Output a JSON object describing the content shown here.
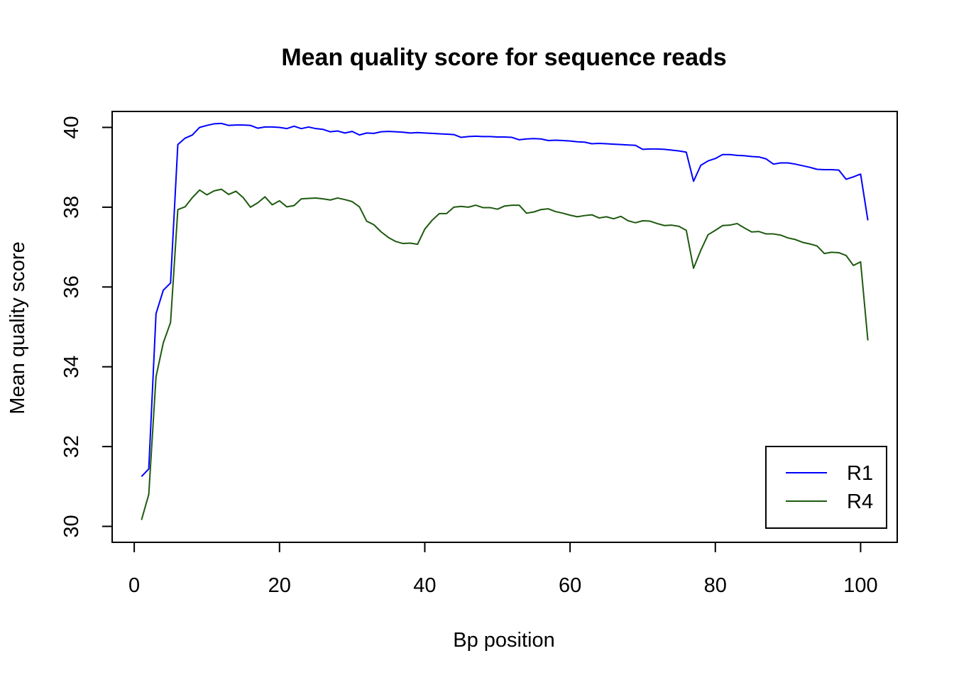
{
  "chart_data": {
    "type": "line",
    "title": "Mean quality score for sequence reads",
    "xlabel": "Bp position",
    "ylabel": "Mean quality score",
    "xlim": [
      -3.04,
      105.04
    ],
    "ylim": [
      29.6,
      40.4
    ],
    "xticks": [
      0,
      20,
      40,
      60,
      80,
      100
    ],
    "yticks": [
      30,
      32,
      34,
      36,
      38,
      40
    ],
    "grid": false,
    "legend_position": "bottom-right",
    "x": [
      1,
      2,
      3,
      4,
      5,
      6,
      7,
      8,
      9,
      10,
      11,
      12,
      13,
      14,
      15,
      16,
      17,
      18,
      19,
      20,
      21,
      22,
      23,
      24,
      25,
      26,
      27,
      28,
      29,
      30,
      31,
      32,
      33,
      34,
      35,
      36,
      37,
      38,
      39,
      40,
      41,
      42,
      43,
      44,
      45,
      46,
      47,
      48,
      49,
      50,
      51,
      52,
      53,
      54,
      55,
      56,
      57,
      58,
      59,
      60,
      61,
      62,
      63,
      64,
      65,
      66,
      67,
      68,
      69,
      70,
      71,
      72,
      73,
      74,
      75,
      76,
      77,
      78,
      79,
      80,
      81,
      82,
      83,
      84,
      85,
      86,
      87,
      88,
      89,
      90,
      91,
      92,
      93,
      94,
      95,
      96,
      97,
      98,
      99,
      100,
      101
    ],
    "series": [
      {
        "name": "R1",
        "color": "#0000ff",
        "values": [
          31.25,
          31.44,
          35.33,
          35.92,
          36.1,
          39.57,
          39.73,
          39.81,
          40.0,
          40.05,
          40.09,
          40.1,
          40.05,
          40.06,
          40.06,
          40.05,
          39.98,
          40.01,
          40.01,
          40.0,
          39.97,
          40.03,
          39.97,
          40.01,
          39.97,
          39.95,
          39.89,
          39.91,
          39.86,
          39.9,
          39.81,
          39.86,
          39.85,
          39.89,
          39.9,
          39.89,
          39.88,
          39.86,
          39.87,
          39.86,
          39.85,
          39.84,
          39.83,
          39.82,
          39.75,
          39.77,
          39.78,
          39.77,
          39.77,
          39.76,
          39.76,
          39.75,
          39.69,
          39.71,
          39.72,
          39.71,
          39.67,
          39.68,
          39.67,
          39.66,
          39.64,
          39.63,
          39.59,
          39.6,
          39.59,
          39.58,
          39.57,
          39.56,
          39.55,
          39.45,
          39.46,
          39.46,
          39.45,
          39.43,
          39.41,
          39.38,
          38.65,
          39.05,
          39.16,
          39.22,
          39.32,
          39.32,
          39.3,
          39.29,
          39.27,
          39.26,
          39.21,
          39.08,
          39.11,
          39.11,
          39.08,
          39.04,
          39.0,
          38.95,
          38.94,
          38.94,
          38.93,
          38.7,
          38.76,
          38.83,
          37.67
        ]
      },
      {
        "name": "R4",
        "color": "#1e5a10",
        "values": [
          30.16,
          30.8,
          33.75,
          34.6,
          35.11,
          37.94,
          38.01,
          38.24,
          38.43,
          38.31,
          38.41,
          38.45,
          38.32,
          38.4,
          38.24,
          38.0,
          38.11,
          38.26,
          38.06,
          38.16,
          38.01,
          38.04,
          38.21,
          38.22,
          38.23,
          38.21,
          38.18,
          38.23,
          38.19,
          38.14,
          38.01,
          37.65,
          37.56,
          37.38,
          37.24,
          37.14,
          37.09,
          37.1,
          37.07,
          37.45,
          37.67,
          37.84,
          37.84,
          38.0,
          38.02,
          38.0,
          38.05,
          37.99,
          37.99,
          37.95,
          38.03,
          38.05,
          38.05,
          37.85,
          37.88,
          37.94,
          37.96,
          37.89,
          37.85,
          37.8,
          37.76,
          37.79,
          37.81,
          37.73,
          37.76,
          37.71,
          37.77,
          37.66,
          37.61,
          37.66,
          37.65,
          37.59,
          37.54,
          37.55,
          37.52,
          37.42,
          36.47,
          36.92,
          37.31,
          37.42,
          37.54,
          37.55,
          37.59,
          37.48,
          37.38,
          37.39,
          37.33,
          37.33,
          37.3,
          37.23,
          37.19,
          37.12,
          37.08,
          37.03,
          36.84,
          36.87,
          36.86,
          36.79,
          36.54,
          36.63,
          34.66
        ]
      }
    ]
  }
}
